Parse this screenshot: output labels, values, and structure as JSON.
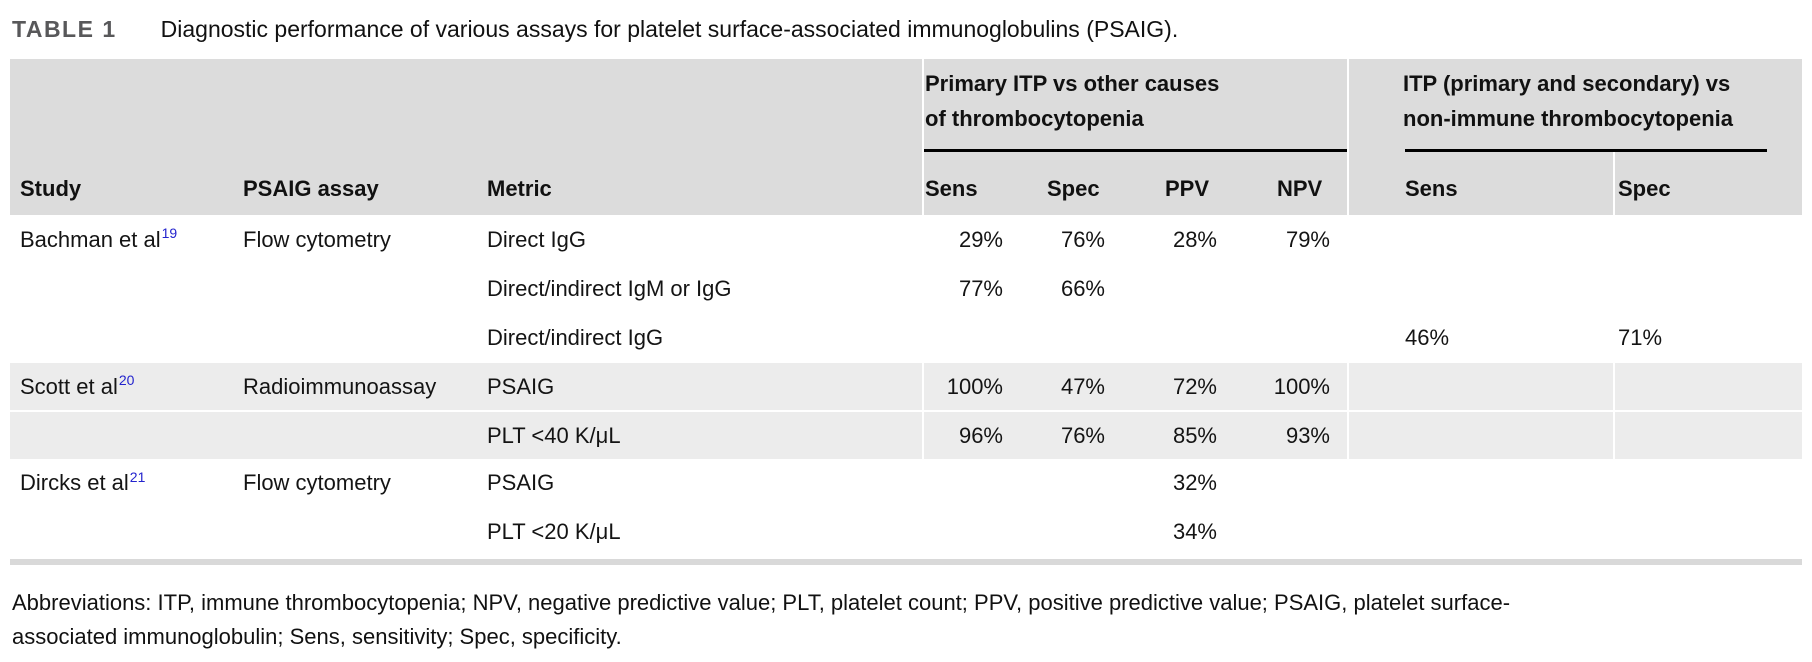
{
  "colors": {
    "link_blue": "#2323cd",
    "header_gray": "#dcdcdc",
    "shaded_row_gray": "#ececec",
    "bottom_rule_gray": "#d9d9d9",
    "group_rule_black": "#000000"
  },
  "table": {
    "label": "TABLE 1",
    "caption": "Diagnostic performance of various assays for platelet surface-associated immunoglobulins (PSAIG).",
    "group1": {
      "line1": "Primary ITP vs other causes",
      "line2": "of thrombocytopenia"
    },
    "group2": {
      "line1": "ITP (primary and secondary) vs",
      "line2": "non-immune thrombocytopenia"
    },
    "columns": {
      "study": "Study",
      "assay": "PSAIG assay",
      "metric": "Metric",
      "sens1": "Sens",
      "spec1": "Spec",
      "ppv": "PPV",
      "npv": "NPV",
      "sens2": "Sens",
      "spec2": "Spec"
    },
    "rows": [
      {
        "study": "Bachman et al",
        "ref": "19",
        "assay": "Flow cytometry",
        "metric": "Direct IgG",
        "sens1": "29%",
        "spec1": "76%",
        "ppv": "28%",
        "npv": "79%"
      },
      {
        "metric": "Direct/indirect IgM or IgG",
        "sens1": "77%",
        "spec1": "66%"
      },
      {
        "metric": "Direct/indirect IgG",
        "sens2": "46%",
        "spec2": "71%"
      },
      {
        "study": "Scott et al",
        "ref": "20",
        "assay": "Radioimmunoassay",
        "metric": "PSAIG",
        "sens1": "100%",
        "spec1": "47%",
        "ppv": "72%",
        "npv": "100%"
      },
      {
        "metric": "PLT <40 K/μL",
        "sens1": "96%",
        "spec1": "76%",
        "ppv": "85%",
        "npv": "93%"
      },
      {
        "study": "Dircks et al",
        "ref": "21",
        "assay": "Flow cytometry",
        "metric": "PSAIG",
        "ppv": "32%"
      },
      {
        "metric": "PLT <20 K/μL",
        "ppv": "34%"
      }
    ]
  },
  "footnote": {
    "line1": "Abbreviations: ITP, immune thrombocytopenia; NPV, negative predictive value; PLT, platelet count; PPV, positive predictive value; PSAIG, platelet surface-",
    "line2": "associated immunoglobulin; Sens, sensitivity; Spec, specificity."
  }
}
